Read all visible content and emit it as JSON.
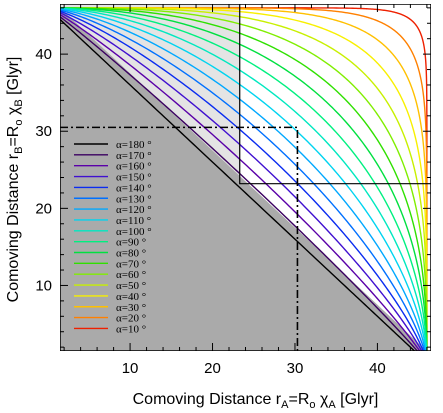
{
  "chart_data": {
    "type": "line",
    "xlabel": {
      "main": "Comoving Distance r",
      "sub1": "A",
      "mid": "=R",
      "sub2": "o",
      "sym": " χ",
      "sub3": "A",
      "tail": " [Glyr]"
    },
    "ylabel": {
      "main": "Comoving Distance r",
      "sub1": "B",
      "mid": "=R",
      "sub2": "o",
      "sym": " χ",
      "sub3": "B",
      "tail": " [Glyr]"
    },
    "xlim": [
      1.5,
      46.5
    ],
    "ylim": [
      1.5,
      46.5
    ],
    "xticks": [
      10,
      20,
      30,
      40
    ],
    "yticks": [
      10,
      20,
      30,
      40
    ],
    "x_tick_labels": [
      "10",
      "20",
      "30",
      "40"
    ],
    "y_tick_labels": [
      "10",
      "20",
      "30",
      "40"
    ],
    "max_distance": 46,
    "legend": {
      "placement": "lower-left",
      "prefix": "α=",
      "suffix": " °"
    },
    "series": [
      {
        "name": "α=180 °",
        "alpha_deg": 180,
        "color": "#000000"
      },
      {
        "name": "α=170 °",
        "alpha_deg": 170,
        "color": "#3a0060"
      },
      {
        "name": "α=160 °",
        "alpha_deg": 160,
        "color": "#5a00a8"
      },
      {
        "name": "α=150 °",
        "alpha_deg": 150,
        "color": "#4010d0"
      },
      {
        "name": "α=140 °",
        "alpha_deg": 140,
        "color": "#0a2cf0"
      },
      {
        "name": "α=130 °",
        "alpha_deg": 130,
        "color": "#0070ff"
      },
      {
        "name": "α=120 °",
        "alpha_deg": 120,
        "color": "#00a8ff"
      },
      {
        "name": "α=110 °",
        "alpha_deg": 110,
        "color": "#00d4f0"
      },
      {
        "name": "α=100 °",
        "alpha_deg": 100,
        "color": "#00e8c0"
      },
      {
        "name": "α=90 °",
        "alpha_deg": 90,
        "color": "#00f080"
      },
      {
        "name": "α=80 °",
        "alpha_deg": 80,
        "color": "#00e040"
      },
      {
        "name": "α=70 °",
        "alpha_deg": 70,
        "color": "#30e000"
      },
      {
        "name": "α=60 °",
        "alpha_deg": 60,
        "color": "#80ee00"
      },
      {
        "name": "α=50 °",
        "alpha_deg": 50,
        "color": "#c8f000"
      },
      {
        "name": "α=40 °",
        "alpha_deg": 40,
        "color": "#f8f000"
      },
      {
        "name": "α=30 °",
        "alpha_deg": 30,
        "color": "#ffc000"
      },
      {
        "name": "α=20 °",
        "alpha_deg": 20,
        "color": "#ff8000"
      },
      {
        "name": "α=10 °",
        "alpha_deg": 10,
        "color": "#ee2000"
      }
    ],
    "regions": {
      "lower_left_triangle_fill": "#aaaaaa",
      "upper_left_box_fill": "#e4e4e4"
    },
    "reference_lines": {
      "solid_box_corner": [
        23.3,
        23.2
      ],
      "dash_dot_box_corner": [
        30.3,
        30.5
      ]
    }
  }
}
